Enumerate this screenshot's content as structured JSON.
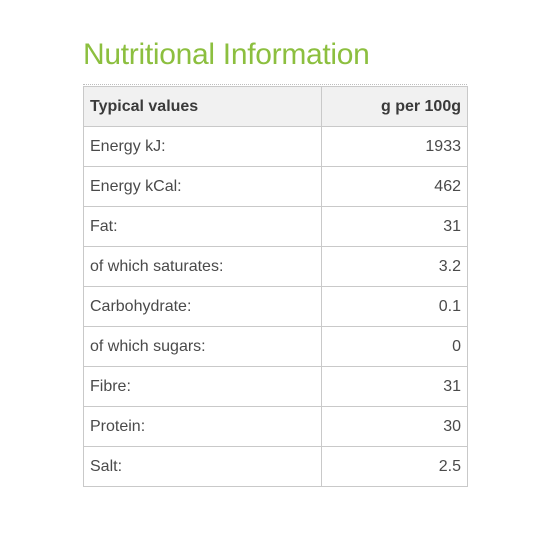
{
  "title": "Nutritional Information",
  "table": {
    "headers": {
      "label": "Typical values",
      "value": "g per 100g"
    },
    "rows": [
      {
        "label": "Energy kJ:",
        "value": "1933"
      },
      {
        "label": "Energy kCal:",
        "value": "462"
      },
      {
        "label": "Fat:",
        "value": "31"
      },
      {
        "label": "of which saturates:",
        "value": "3.2"
      },
      {
        "label": "Carbohydrate:",
        "value": "0.1"
      },
      {
        "label": "of which sugars:",
        "value": "0"
      },
      {
        "label": "Fibre:",
        "value": "31"
      },
      {
        "label": "Protein:",
        "value": "30"
      },
      {
        "label": "Salt:",
        "value": "2.5"
      }
    ]
  },
  "colors": {
    "title": "#8cbf3f",
    "header_bg": "#f1f1f1",
    "border": "#c9c9c9",
    "text": "#3a3a3a"
  }
}
